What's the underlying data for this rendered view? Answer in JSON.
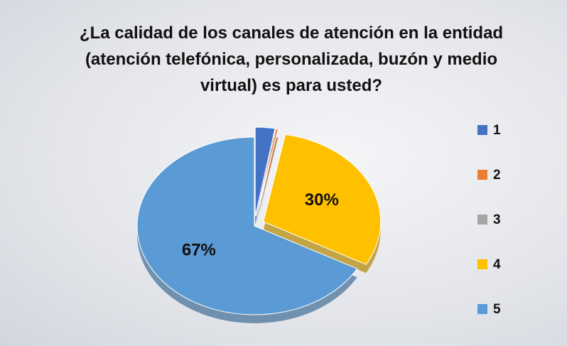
{
  "chart_data": {
    "type": "pie",
    "title": "¿La calidad de los canales de atención en la entidad (atención telefónica, personalizada, buzón y medio virtual) es para usted?",
    "categories": [
      "1",
      "2",
      "3",
      "4",
      "5"
    ],
    "values": [
      2.7,
      0.3,
      0,
      30,
      67
    ],
    "value_labels": [
      null,
      null,
      null,
      "30%",
      "67%"
    ],
    "colors": [
      "#4472c4",
      "#ed7d31",
      "#a5a5a5",
      "#ffc000",
      "#5b9bd5"
    ],
    "legend": "right"
  }
}
